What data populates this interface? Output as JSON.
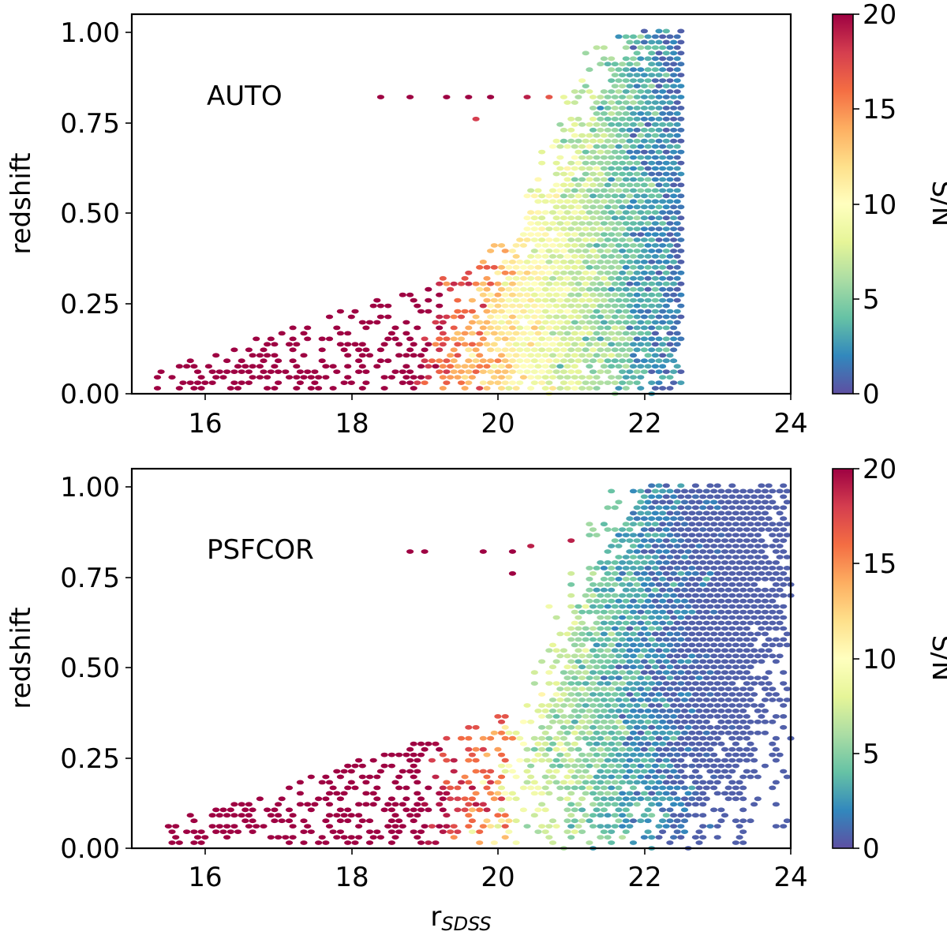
{
  "chart_data": [
    {
      "type": "heatmap",
      "subtype": "hexbin",
      "annotation": "AUTO",
      "xlabel": "",
      "ylabel": "redshift",
      "xlim": [
        15,
        24
      ],
      "ylim": [
        0,
        1.05
      ],
      "xticks": [
        16,
        18,
        20,
        22,
        24
      ],
      "xtick_labels": [
        "16",
        "18",
        "20",
        "22",
        "24"
      ],
      "yticks": [
        0,
        0.25,
        0.5,
        0.75,
        1.0
      ],
      "ytick_labels": [
        "0.00",
        "0.25",
        "0.50",
        "0.75",
        "1.00"
      ],
      "colorbar": {
        "label": "S/N",
        "min": 0,
        "max": 20,
        "ticks": [
          0,
          5,
          10,
          15,
          20
        ],
        "tick_labels": [
          "0",
          "5",
          "10",
          "15",
          "20"
        ],
        "colormap": "Spectral_r"
      },
      "magnitude_cut": 22.5,
      "density_peak": {
        "x": 22.0,
        "y": 0.55
      },
      "isolated_points": [
        {
          "x": 18.4,
          "y": 0.82,
          "c": 20
        },
        {
          "x": 18.8,
          "y": 0.82,
          "c": 20
        },
        {
          "x": 19.3,
          "y": 0.82,
          "c": 20
        },
        {
          "x": 19.6,
          "y": 0.82,
          "c": 20
        },
        {
          "x": 19.9,
          "y": 0.825,
          "c": 20
        },
        {
          "x": 20.4,
          "y": 0.82,
          "c": 19
        },
        {
          "x": 20.7,
          "y": 0.82,
          "c": 17
        },
        {
          "x": 19.7,
          "y": 0.76,
          "c": 18
        }
      ],
      "grid": false,
      "legend": "none"
    },
    {
      "type": "heatmap",
      "subtype": "hexbin",
      "annotation": "PSFCOR",
      "xlabel": "r",
      "xlabel_subscript": "SDSS",
      "ylabel": "redshift",
      "xlim": [
        15,
        24
      ],
      "ylim": [
        0,
        1.05
      ],
      "xticks": [
        16,
        18,
        20,
        22,
        24
      ],
      "xtick_labels": [
        "16",
        "18",
        "20",
        "22",
        "24"
      ],
      "yticks": [
        0,
        0.25,
        0.5,
        0.75,
        1.0
      ],
      "ytick_labels": [
        "0.00",
        "0.25",
        "0.50",
        "0.75",
        "1.00"
      ],
      "colorbar": {
        "label": "S/N",
        "min": 0,
        "max": 20,
        "ticks": [
          0,
          5,
          10,
          15,
          20
        ],
        "tick_labels": [
          "0",
          "5",
          "10",
          "15",
          "20"
        ],
        "colormap": "Spectral_r"
      },
      "magnitude_cut": 24.0,
      "density_peak": {
        "x": 22.5,
        "y": 0.55
      },
      "isolated_points": [
        {
          "x": 18.8,
          "y": 0.82,
          "c": 20
        },
        {
          "x": 19.0,
          "y": 0.82,
          "c": 20
        },
        {
          "x": 19.8,
          "y": 0.82,
          "c": 20
        },
        {
          "x": 20.2,
          "y": 0.82,
          "c": 20
        },
        {
          "x": 20.5,
          "y": 0.83,
          "c": 19
        },
        {
          "x": 21.0,
          "y": 0.85,
          "c": 19
        },
        {
          "x": 20.2,
          "y": 0.76,
          "c": 20
        }
      ],
      "grid": false,
      "legend": "none"
    }
  ]
}
